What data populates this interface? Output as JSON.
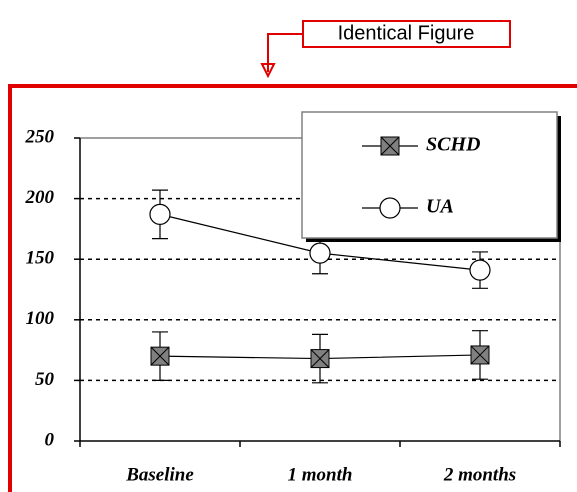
{
  "chart_data": {
    "type": "line",
    "annotation": "Identical Figure",
    "categories": [
      "Baseline",
      "1 month",
      "2 months"
    ],
    "series": [
      {
        "name": "SCHD",
        "color": "#808080",
        "marker": "square-x",
        "values": [
          70,
          68,
          71
        ],
        "errors": [
          20,
          20,
          20
        ]
      },
      {
        "name": "UA",
        "color": "#ffffff",
        "marker": "circle",
        "values": [
          187,
          155,
          141
        ],
        "errors": [
          20,
          17,
          15
        ]
      }
    ],
    "ylim": [
      0,
      250
    ],
    "yticks": [
      0,
      50,
      100,
      150,
      200,
      250
    ],
    "grid": true
  }
}
